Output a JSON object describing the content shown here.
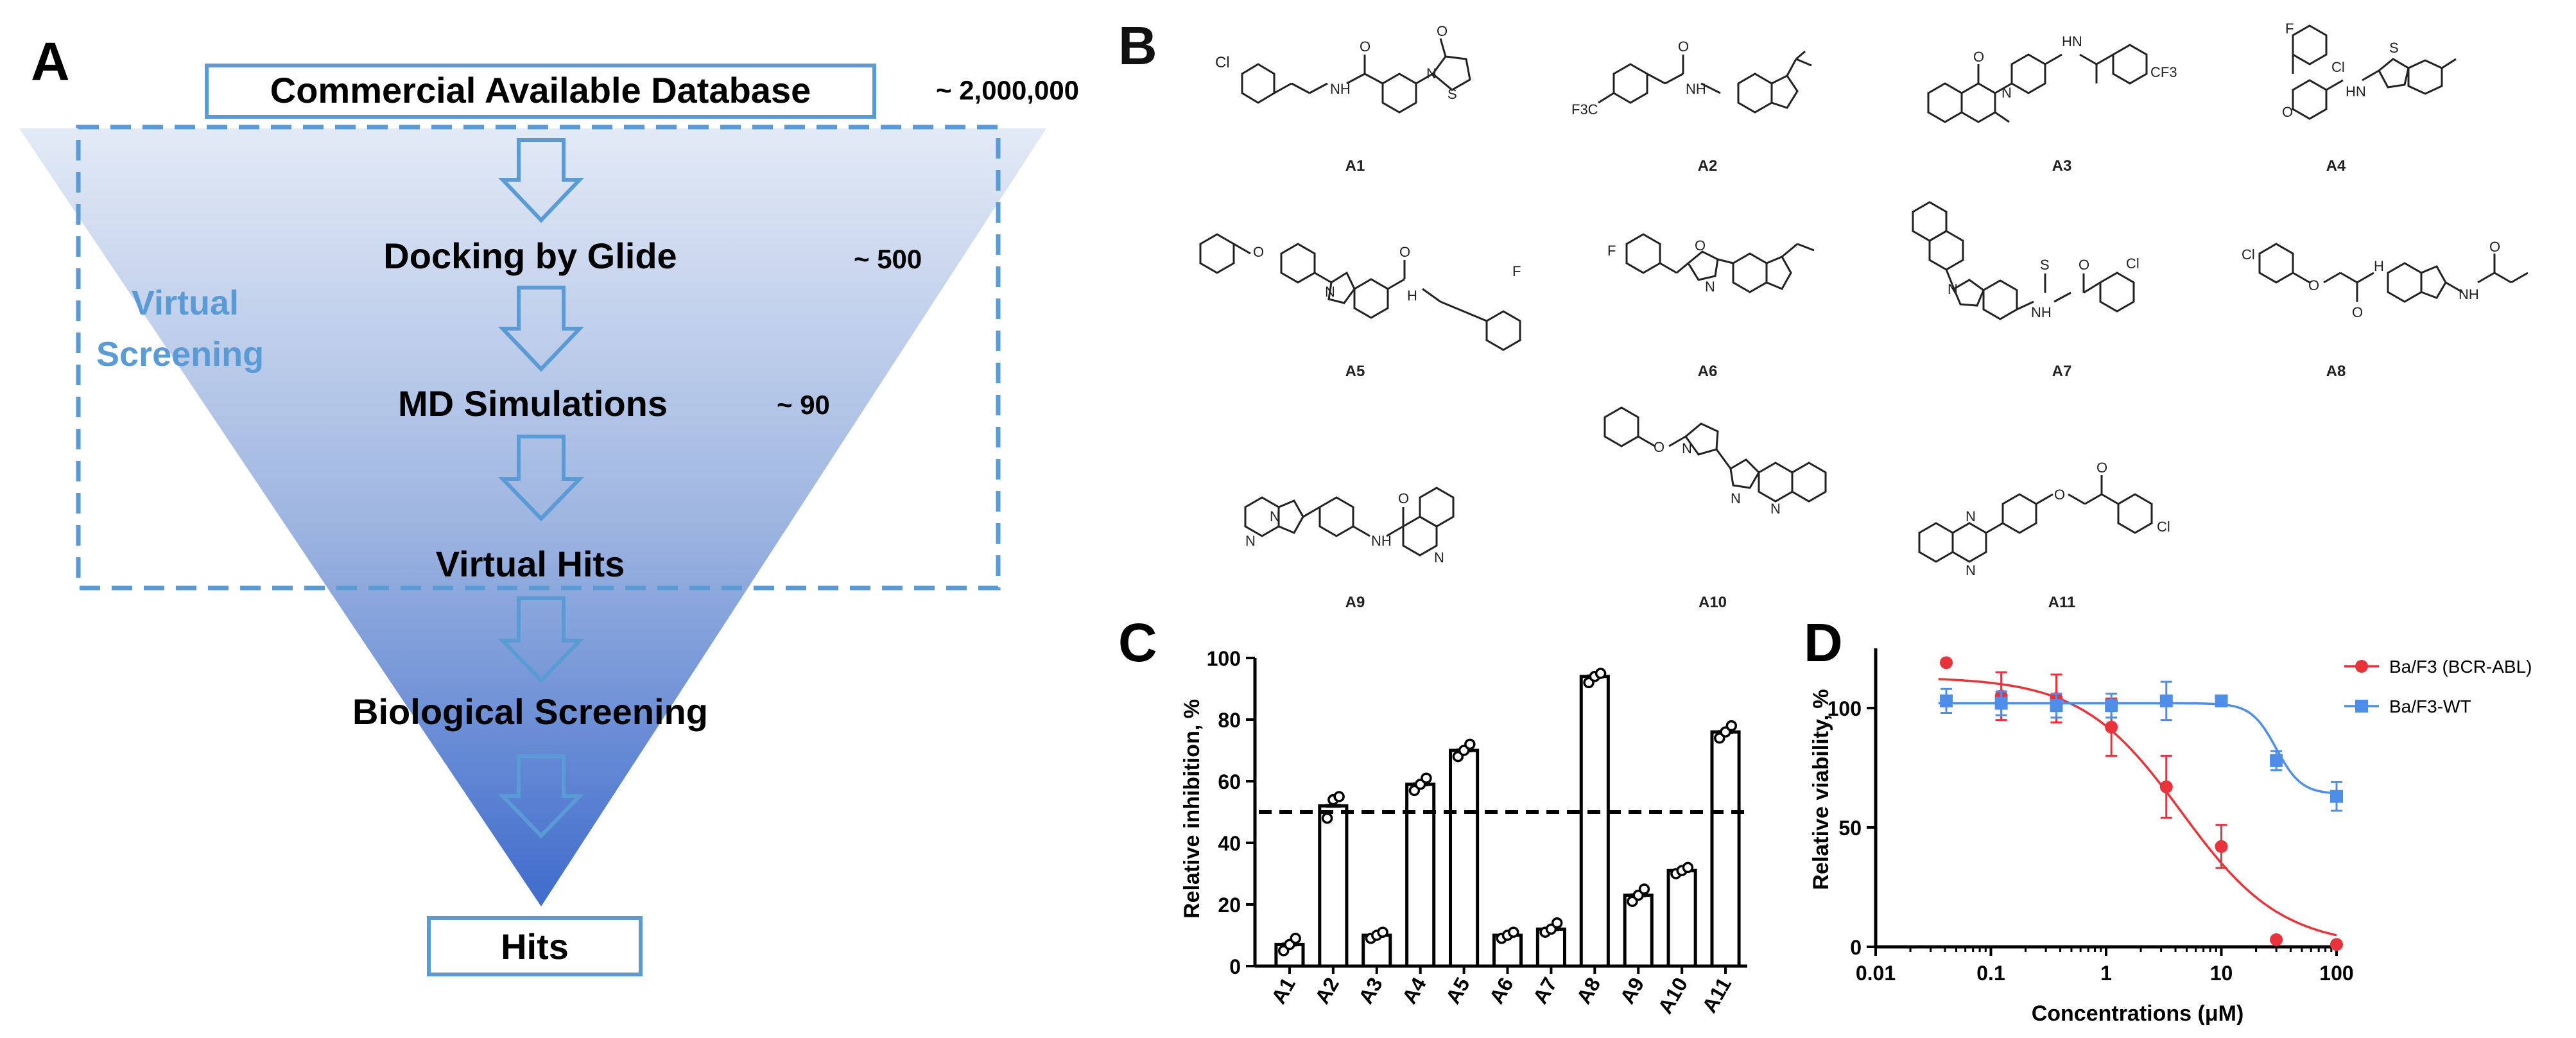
{
  "panel_a": {
    "letter": "A",
    "database_label": "Commercial Available Database",
    "database_count": "~ 2,000,000",
    "virtual_screening_label_line1": "Virtual",
    "virtual_screening_label_line2": "Screening",
    "stages": [
      {
        "label": "Docking by Glide",
        "count": "~ 500"
      },
      {
        "label": "MD Simulations",
        "count": "~ 90"
      },
      {
        "label": "Virtual Hits",
        "count": ""
      },
      {
        "label": "Biological Screening",
        "count": ""
      }
    ],
    "hits_label": "Hits",
    "colors": {
      "funnel_top": "#dfe7f4",
      "funnel_bottom": "#4470c6",
      "box_border": "#5b9bd5",
      "virtual_text": "#5b9bd5"
    }
  },
  "panel_b": {
    "letter": "B",
    "compounds": [
      "A1",
      "A2",
      "A3",
      "A4",
      "A5",
      "A6",
      "A7",
      "A8",
      "A9",
      "A10",
      "A11"
    ],
    "atom_labels": {
      "Cl": "Cl",
      "O": "O",
      "N": "N",
      "H": "H",
      "NH": "NH",
      "HN": "HN",
      "S": "S",
      "F": "F",
      "CF3": "CF3",
      "F3C": "F3C",
      "SO2": "O",
      "HNH": "H"
    }
  },
  "panel_c": {
    "letter": "C",
    "ylabel": "Relative inhibition, %"
  },
  "panel_d": {
    "letter": "D",
    "xlabel": "Concentrations (μM)",
    "ylabel": "Relative viability, %"
  },
  "chart_data": [
    {
      "type": "bar",
      "categories": [
        "A1",
        "A2",
        "A3",
        "A4",
        "A5",
        "A6",
        "A7",
        "A8",
        "A9",
        "A10",
        "A11"
      ],
      "values": [
        7,
        52,
        10,
        59,
        70,
        10,
        12,
        94,
        23,
        31,
        76
      ],
      "replicates": [
        [
          5,
          7,
          9
        ],
        [
          48,
          54,
          55
        ],
        [
          9,
          10,
          11
        ],
        [
          57,
          59,
          61
        ],
        [
          68,
          70,
          72
        ],
        [
          9,
          10,
          11
        ],
        [
          11,
          12,
          14
        ],
        [
          92,
          94,
          95
        ],
        [
          21,
          23,
          25
        ],
        [
          30,
          31,
          32
        ],
        [
          74,
          76,
          78
        ]
      ],
      "threshold": 50,
      "ylabel": "Relative inhibition, %",
      "ylim": [
        0,
        100
      ],
      "yticks": [
        0,
        20,
        40,
        60,
        80,
        100
      ]
    },
    {
      "type": "scatter",
      "xscale": "log",
      "xlabel": "Concentrations (μM)",
      "ylabel": "Relative viability, %",
      "xlim": [
        0.01,
        100
      ],
      "ylim": [
        0,
        125
      ],
      "xticks": [
        0.01,
        0.1,
        1,
        10,
        100
      ],
      "xtick_labels": [
        "0.01",
        "0.1",
        "1",
        "10",
        "100"
      ],
      "yticks": [
        0,
        50,
        100
      ],
      "legend_position": "top-right",
      "series": [
        {
          "name": "Ba/F3 (BCR-ABL)",
          "color": "#e8333a",
          "x": [
            0.041,
            0.123,
            0.37,
            1.11,
            3.33,
            10,
            30,
            100
          ],
          "y": [
            119,
            105,
            104,
            92,
            67,
            42,
            3,
            1
          ],
          "err": [
            0,
            10,
            10,
            12,
            13,
            9,
            0,
            0
          ],
          "fit": {
            "top": 113,
            "bottom": 0,
            "ic50": 4.5,
            "hill": 1.0
          }
        },
        {
          "name": "Ba/F3-WT",
          "color": "#4f8ee8",
          "x": [
            0.041,
            0.123,
            0.37,
            1.11,
            3.33,
            10,
            30,
            100
          ],
          "y": [
            103,
            102,
            101,
            101,
            103,
            103,
            78,
            63
          ],
          "err": [
            5,
            5,
            5,
            5,
            8,
            2,
            4,
            6
          ],
          "fit": {
            "top": 102,
            "bottom": 64,
            "ic50": 30,
            "hill": 4.0
          }
        }
      ]
    }
  ]
}
